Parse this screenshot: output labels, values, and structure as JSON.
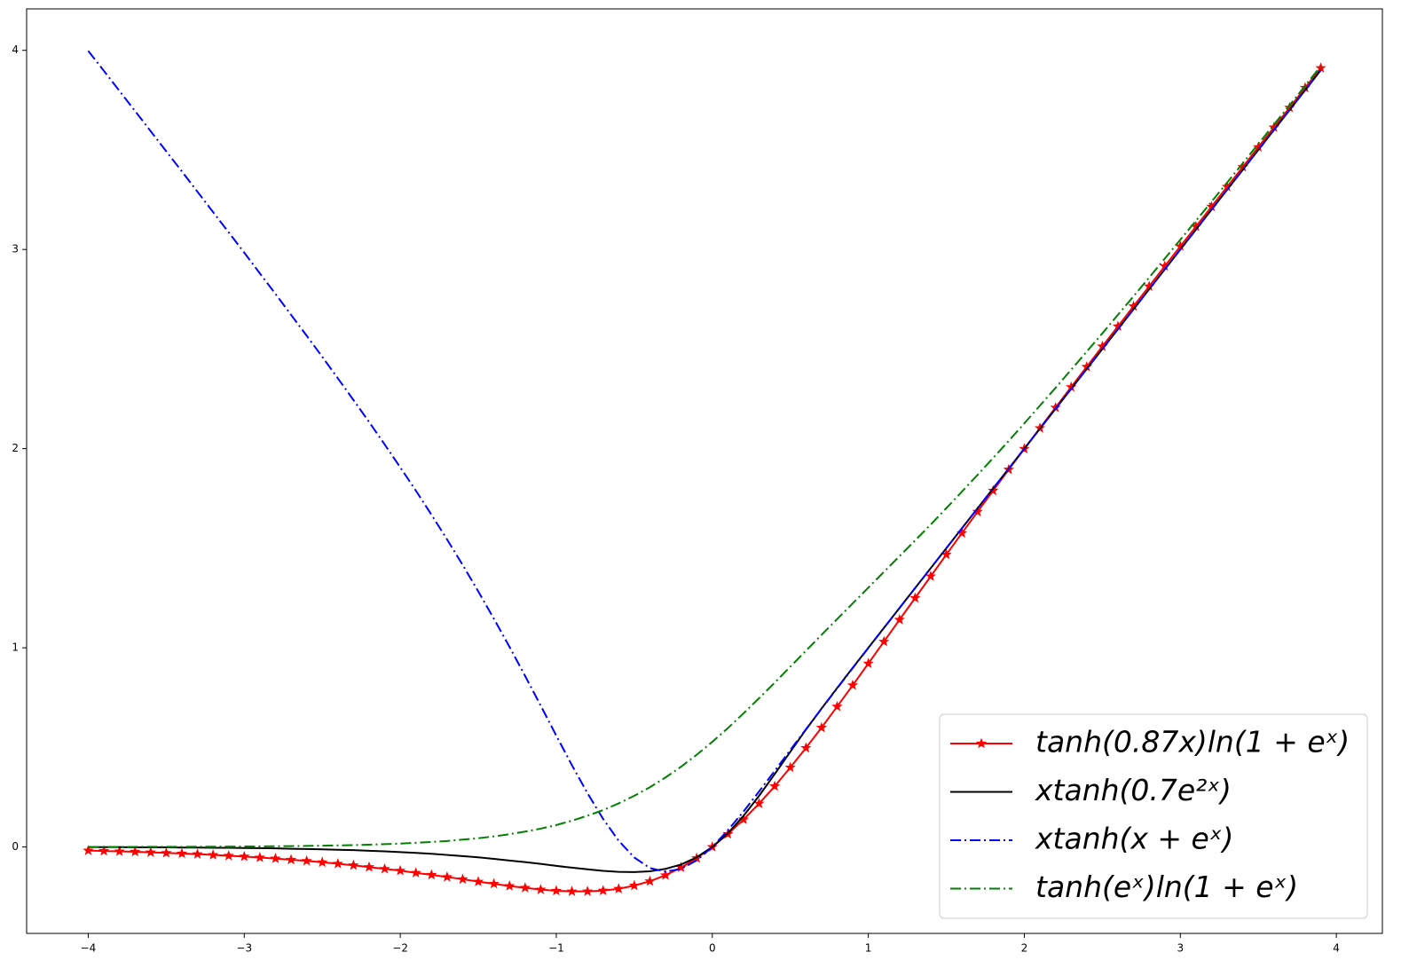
{
  "chart_data": {
    "type": "line",
    "x": [
      -4,
      -3.9,
      -3.8,
      -3.7,
      -3.6,
      -3.5,
      -3.4,
      -3.3,
      -3.2,
      -3.1,
      -3,
      -2.9,
      -2.8,
      -2.7,
      -2.6,
      -2.5,
      -2.4,
      -2.3,
      -2.2,
      -2.1,
      -2,
      -1.9,
      -1.8,
      -1.7,
      -1.6,
      -1.5,
      -1.4,
      -1.3,
      -1.2,
      -1.1,
      -1,
      -0.9,
      -0.8,
      -0.7,
      -0.6,
      -0.5,
      -0.4,
      -0.3,
      -0.2,
      -0.1,
      0,
      0.1,
      0.2,
      0.3,
      0.4,
      0.5,
      0.6,
      0.7,
      0.8,
      0.9,
      1,
      1.1,
      1.2,
      1.3,
      1.4,
      1.5,
      1.6,
      1.7,
      1.8,
      1.9,
      2,
      2.1,
      2.2,
      2.3,
      2.4,
      2.5,
      2.6,
      2.7,
      2.8,
      2.9,
      3,
      3.1,
      3.2,
      3.3,
      3.4,
      3.5,
      3.6,
      3.7,
      3.8,
      3.9
    ],
    "series": [
      {
        "name": "tanh(0.87x)ln(1 + eˣ)",
        "color": "#ff0000",
        "linestyle": "solid",
        "marker": "star",
        "values": [
          -0.018,
          -0.02,
          -0.022,
          -0.024,
          -0.027,
          -0.03,
          -0.033,
          -0.036,
          -0.04,
          -0.044,
          -0.048,
          -0.053,
          -0.058,
          -0.064,
          -0.07,
          -0.077,
          -0.084,
          -0.092,
          -0.101,
          -0.11,
          -0.119,
          -0.13,
          -0.14,
          -0.151,
          -0.162,
          -0.174,
          -0.185,
          -0.196,
          -0.205,
          -0.214,
          -0.22,
          -0.223,
          -0.223,
          -0.219,
          -0.21,
          -0.194,
          -0.172,
          -0.142,
          -0.103,
          -0.056,
          0,
          0.065,
          0.138,
          0.218,
          0.305,
          0.399,
          0.497,
          0.599,
          0.705,
          0.812,
          0.921,
          1.031,
          1.141,
          1.25,
          1.359,
          1.468,
          1.576,
          1.683,
          1.789,
          1.895,
          1.999,
          2.103,
          2.206,
          2.309,
          2.411,
          2.513,
          2.614,
          2.715,
          2.815,
          2.916,
          3.016,
          3.115,
          3.215,
          3.315,
          3.414,
          3.514,
          3.613,
          3.712,
          3.812,
          3.911
        ]
      },
      {
        "name": "xtanh(0.7e²ˣ)",
        "color": "#000000",
        "linestyle": "solid",
        "values": [
          -0.001,
          -0.001,
          -0.001,
          -0.002,
          -0.002,
          -0.002,
          -0.003,
          -0.003,
          -0.004,
          -0.004,
          -0.005,
          -0.006,
          -0.007,
          -0.009,
          -0.01,
          -0.012,
          -0.014,
          -0.016,
          -0.019,
          -0.022,
          -0.026,
          -0.03,
          -0.034,
          -0.04,
          -0.046,
          -0.052,
          -0.06,
          -0.068,
          -0.076,
          -0.085,
          -0.095,
          -0.104,
          -0.112,
          -0.12,
          -0.125,
          -0.126,
          -0.122,
          -0.11,
          -0.088,
          -0.052,
          0,
          0.069,
          0.156,
          0.257,
          0.366,
          0.478,
          0.589,
          0.695,
          0.798,
          0.9,
          1,
          1.1,
          1.2,
          1.3,
          1.4,
          1.5,
          1.6,
          1.7,
          1.8,
          1.9,
          2,
          2.1,
          2.2,
          2.3,
          2.4,
          2.5,
          2.6,
          2.7,
          2.8,
          2.9,
          3,
          3.1,
          3.2,
          3.3,
          3.4,
          3.5,
          3.6,
          3.7,
          3.8,
          3.9
        ]
      },
      {
        "name": "xtanh(x + eˣ)",
        "color": "#0000ff",
        "linestyle": "dashdot",
        "values": [
          3.997,
          3.897,
          3.796,
          3.695,
          3.594,
          3.493,
          3.392,
          3.29,
          3.188,
          3.086,
          2.984,
          2.88,
          2.777,
          2.672,
          2.567,
          2.461,
          2.353,
          2.244,
          2.134,
          2.021,
          1.906,
          1.789,
          1.668,
          1.544,
          1.416,
          1.283,
          1.146,
          1.005,
          0.859,
          0.71,
          0.559,
          0.411,
          0.27,
          0.141,
          0.031,
          -0.053,
          -0.106,
          -0.124,
          -0.11,
          -0.067,
          0,
          0.084,
          0.178,
          0.279,
          0.382,
          0.487,
          0.591,
          0.694,
          0.796,
          0.898,
          0.999,
          1.099,
          1.2,
          1.3,
          1.4,
          1.5,
          1.6,
          1.7,
          1.8,
          1.9,
          2,
          2.1,
          2.2,
          2.3,
          2.4,
          2.5,
          2.6,
          2.7,
          2.8,
          2.9,
          3,
          3.1,
          3.2,
          3.3,
          3.4,
          3.5,
          3.6,
          3.7,
          3.8,
          3.9
        ]
      },
      {
        "name": "tanh(eˣ)ln(1 + eˣ)",
        "color": "#008000",
        "linestyle": "dashdot",
        "values": [
          0.0003,
          0.0004,
          0.0005,
          0.0006,
          0.0007,
          0.0009,
          0.0011,
          0.0013,
          0.0016,
          0.002,
          0.0024,
          0.0029,
          0.0036,
          0.0044,
          0.0053,
          0.0065,
          0.0079,
          0.0096,
          0.0116,
          0.0141,
          0.017,
          0.021,
          0.025,
          0.03,
          0.037,
          0.044,
          0.053,
          0.064,
          0.077,
          0.092,
          0.11,
          0.132,
          0.157,
          0.185,
          0.219,
          0.257,
          0.3,
          0.349,
          0.403,
          0.463,
          0.528,
          0.597,
          0.671,
          0.747,
          0.825,
          0.905,
          0.985,
          1.065,
          1.144,
          1.223,
          1.302,
          1.381,
          1.46,
          1.539,
          1.619,
          1.701,
          1.784,
          1.868,
          1.953,
          2.039,
          2.127,
          2.216,
          2.305,
          2.396,
          2.487,
          2.579,
          2.672,
          2.765,
          2.859,
          2.954,
          3.049,
          3.144,
          3.24,
          3.336,
          3.433,
          3.53,
          3.627,
          3.724,
          3.822,
          3.92
        ]
      }
    ],
    "xlim": [
      -4.395,
      4.295
    ],
    "ylim": [
      -0.434,
      4.208
    ],
    "xticks": [
      {
        "value": -4,
        "label": "−4"
      },
      {
        "value": -3,
        "label": "−3"
      },
      {
        "value": -2,
        "label": "−2"
      },
      {
        "value": -1,
        "label": "−1"
      },
      0,
      1,
      2,
      3,
      4
    ],
    "yticks": [
      0,
      1,
      2,
      3,
      4
    ],
    "grid": false,
    "legend": "lower right"
  }
}
